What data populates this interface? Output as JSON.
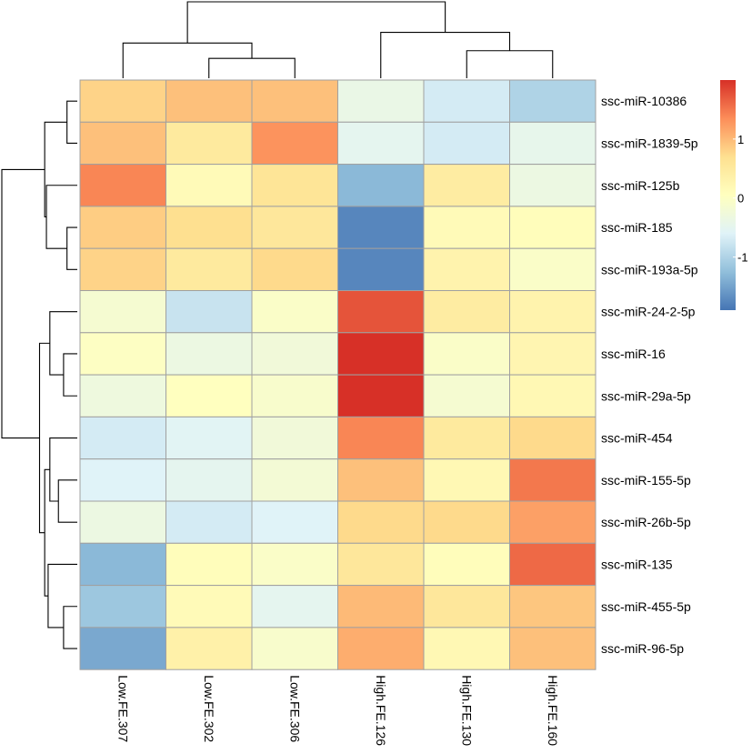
{
  "chart_data": {
    "type": "heatmap",
    "title": "",
    "xlabel": "",
    "ylabel": "",
    "columns": [
      "Low.FE.307",
      "Low.FE.302",
      "Low.FE.306",
      "High.FE.126",
      "High.FE.130",
      "High.FE.160"
    ],
    "rows": [
      "ssc-miR-10386",
      "ssc-miR-1839-5p",
      "ssc-miR-125b",
      "ssc-miR-185",
      "ssc-miR-193a-5p",
      "ssc-miR-24-2-5p",
      "ssc-miR-16",
      "ssc-miR-29a-5p",
      "ssc-miR-454",
      "ssc-miR-155-5p",
      "ssc-miR-26b-5p",
      "ssc-miR-135",
      "ssc-miR-455-5p",
      "ssc-miR-96-5p"
    ],
    "values": [
      [
        0.8,
        0.95,
        0.95,
        -0.4,
        -0.7,
        -1.0
      ],
      [
        0.95,
        0.5,
        1.3,
        -0.5,
        -0.7,
        -0.45
      ],
      [
        1.4,
        0.15,
        0.6,
        -1.3,
        0.45,
        -0.35
      ],
      [
        0.85,
        0.7,
        0.55,
        -1.75,
        0.15,
        0.1
      ],
      [
        0.8,
        0.5,
        0.75,
        -1.75,
        0.3,
        -0.05
      ],
      [
        -0.15,
        -0.8,
        -0.05,
        1.75,
        0.45,
        0.3
      ],
      [
        0.0,
        -0.35,
        -0.25,
        2.0,
        -0.05,
        0.25
      ],
      [
        -0.3,
        0.05,
        -0.1,
        2.0,
        -0.15,
        0.2
      ],
      [
        -0.7,
        -0.55,
        -0.25,
        1.4,
        0.5,
        0.75
      ],
      [
        -0.6,
        -0.5,
        -0.2,
        0.95,
        0.2,
        1.5
      ],
      [
        -0.35,
        -0.7,
        -0.6,
        0.75,
        0.75,
        1.2
      ],
      [
        -1.3,
        0.1,
        -0.05,
        0.55,
        0.1,
        1.6
      ],
      [
        -1.15,
        0.15,
        -0.5,
        1.0,
        0.55,
        0.9
      ],
      [
        -1.45,
        0.35,
        -0.1,
        1.1,
        0.2,
        0.95
      ]
    ],
    "color_scale": {
      "min": -1.9,
      "max": 2.0,
      "stops": [
        "#4575b4",
        "#91bfdb",
        "#e0f3f8",
        "#ffffbf",
        "#fee090",
        "#fc8d59",
        "#d73027"
      ]
    },
    "legend": {
      "placement": "right",
      "ticks": [
        1,
        0,
        -1
      ]
    },
    "row_dendrogram": [
      [
        0,
        1,
        0.3
      ],
      [
        3,
        4,
        0.3
      ],
      [
        2,
        15,
        0.9
      ],
      [
        14,
        16,
        0.95
      ],
      [
        6,
        7,
        0.4
      ],
      [
        5,
        18,
        0.8
      ],
      [
        9,
        10,
        0.55
      ],
      [
        8,
        20,
        0.8
      ],
      [
        12,
        13,
        0.4
      ],
      [
        11,
        22,
        0.85
      ],
      [
        21,
        23,
        0.95
      ],
      [
        19,
        24,
        1.1
      ],
      [
        17,
        25,
        2.2
      ]
    ],
    "col_dendrogram": [
      [
        1,
        2,
        0.26
      ],
      [
        0,
        6,
        0.46
      ],
      [
        4,
        5,
        0.36
      ],
      [
        3,
        8,
        0.6
      ],
      [
        7,
        9,
        1.0
      ]
    ]
  }
}
